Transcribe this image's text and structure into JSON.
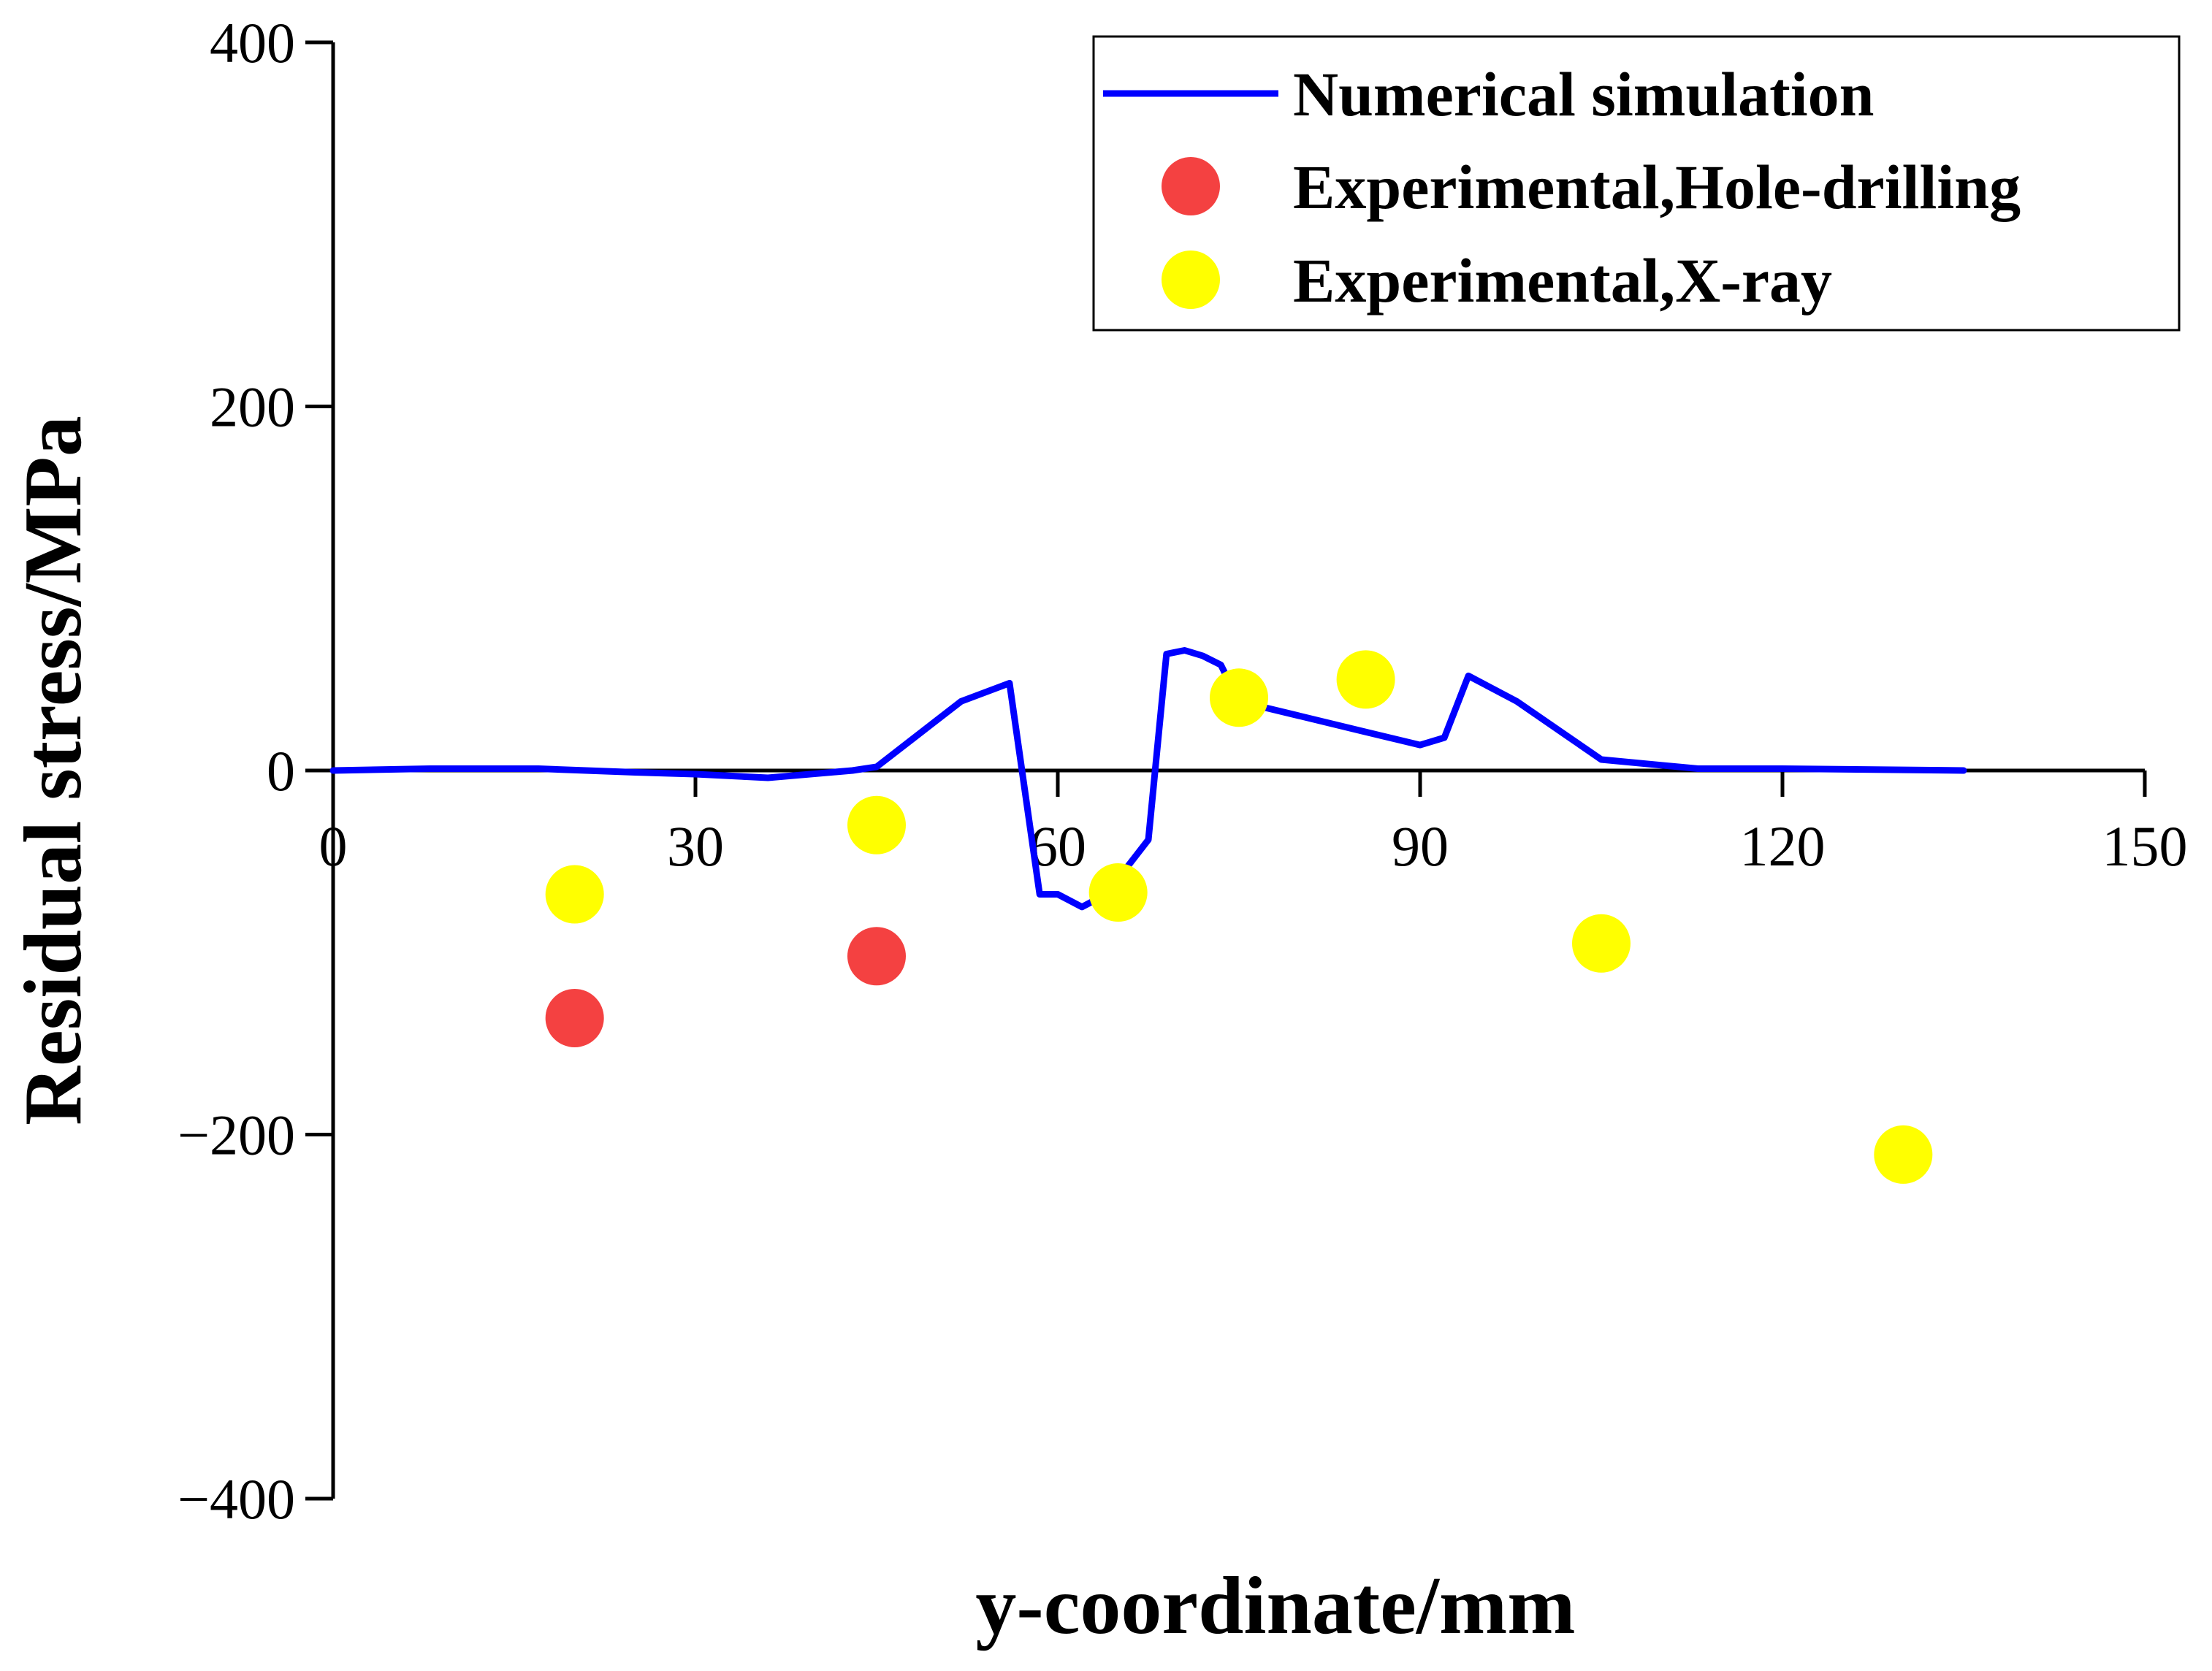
{
  "chart_data": {
    "type": "scatter",
    "xlabel": "y-coordinate/mm",
    "ylabel": "Residual stress/MPa",
    "xlim": [
      0,
      150
    ],
    "ylim": [
      -400,
      400
    ],
    "xticks": [
      0,
      30,
      60,
      90,
      120,
      150
    ],
    "yticks": [
      -400,
      -200,
      0,
      200,
      400
    ],
    "grid": false,
    "legend_position": "top-right",
    "series": [
      {
        "name": "Numerical simulation",
        "kind": "line",
        "color": "#0000ff",
        "x": [
          0,
          8,
          17,
          25,
          30,
          36,
          43,
          45,
          52,
          56,
          58.5,
          60,
          62,
          64,
          67.5,
          69,
          70.5,
          72,
          73.5,
          75,
          80,
          85,
          90,
          92,
          94,
          98,
          105,
          113,
          120,
          135
        ],
        "y": [
          0,
          1,
          1,
          -1,
          -2,
          -4,
          0,
          2,
          38,
          48,
          -68,
          -68,
          -75,
          -68,
          -38,
          64,
          66,
          63,
          58,
          38,
          30,
          22,
          14,
          18,
          52,
          38,
          6,
          1,
          1,
          0
        ]
      },
      {
        "name": "Experimental,Hole-drilling",
        "kind": "scatter",
        "color": "#f44141",
        "x": [
          20,
          45
        ],
        "y": [
          -136,
          -102
        ]
      },
      {
        "name": "Experimental,X-ray",
        "kind": "scatter",
        "color": "#ffff00",
        "x": [
          20,
          45,
          65,
          75,
          85.5,
          105,
          130
        ],
        "y": [
          -68,
          -30,
          -67,
          40,
          50,
          -95,
          -211
        ]
      }
    ]
  }
}
